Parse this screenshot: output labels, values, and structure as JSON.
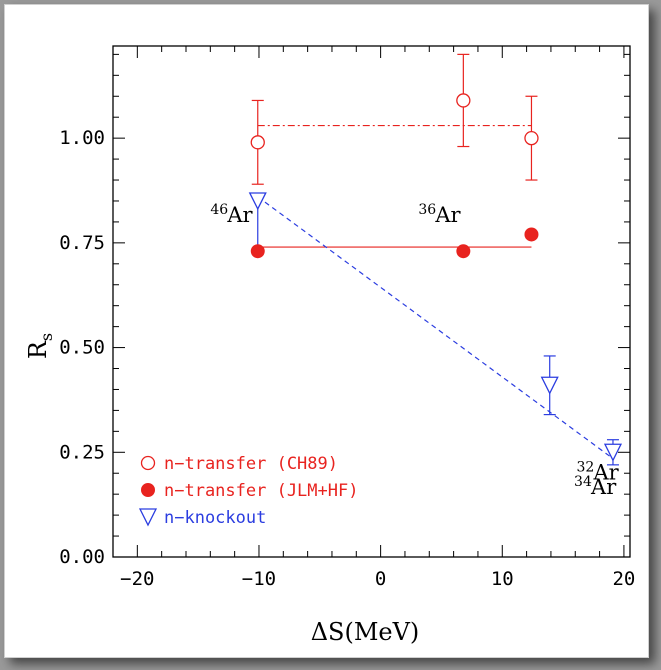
{
  "chart_data": {
    "type": "scatter",
    "xlabel": "ΔS(MeV)",
    "ylabel": "R",
    "ylabel_sub": "s",
    "xlim": [
      -22,
      20.5
    ],
    "ylim": [
      0.0,
      1.22
    ],
    "xticks": [
      -20,
      -10,
      0,
      10,
      20
    ],
    "xtick_labels": [
      "−20",
      "−10",
      "0",
      "10",
      "20"
    ],
    "yticks": [
      0.0,
      0.25,
      0.5,
      0.75,
      1.0
    ],
    "ytick_labels": [
      "0.00",
      "0.25",
      "0.50",
      "0.75",
      "1.00"
    ],
    "grid": false,
    "legend_placement": "bottom-left",
    "series": [
      {
        "name": "n−transfer (CH89)",
        "marker": "open-circle",
        "color": "#e8231f",
        "x": [
          -10.1,
          6.8,
          12.4
        ],
        "y": [
          0.99,
          1.09,
          1.0
        ],
        "err": [
          0.1,
          0.11,
          0.1
        ],
        "reference_line": {
          "style": "dash-dot",
          "x": [
            -10.1,
            12.4
          ],
          "y": [
            1.03,
            1.03
          ]
        }
      },
      {
        "name": "n−transfer (JLM+HF)",
        "marker": "filled-circle",
        "color": "#e8231f",
        "x": [
          -10.1,
          6.8,
          12.4
        ],
        "y": [
          0.73,
          0.73,
          0.77
        ],
        "reference_line": {
          "style": "solid",
          "x": [
            -10.1,
            12.4
          ],
          "y": [
            0.74,
            0.74
          ]
        }
      },
      {
        "name": "n−knockout",
        "marker": "open-triangle-down",
        "color": "#2b3de0",
        "x": [
          -10.1,
          13.9,
          19.1
        ],
        "y": [
          0.85,
          0.41,
          0.25
        ],
        "err_up": [
          0.0,
          0.07,
          0.03
        ],
        "err_down": [
          0.12,
          0.07,
          0.03
        ],
        "fit_line": {
          "style": "dashed",
          "x": [
            -10.1,
            19.1
          ],
          "y": [
            0.86,
            0.235
          ]
        }
      }
    ],
    "annotations": [
      {
        "mass": "46",
        "element": "Ar",
        "x": -14.0,
        "y": 0.8
      },
      {
        "mass": "36",
        "element": "Ar",
        "x": 3.1,
        "y": 0.8
      },
      {
        "mass": "34",
        "element": "Ar",
        "x": 15.9,
        "y": 0.15
      },
      {
        "mass": "32",
        "element": "Ar",
        "x": 16.1,
        "y": 0.185
      }
    ]
  }
}
